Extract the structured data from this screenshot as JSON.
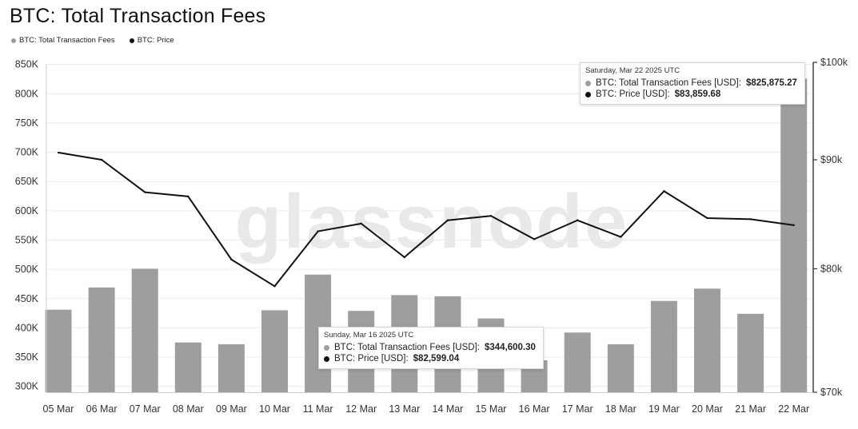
{
  "title": "BTC: Total Transaction Fees",
  "legend": [
    {
      "label": "BTC: Total Transaction Fees",
      "color": "#9e9e9e"
    },
    {
      "label": "BTC: Price",
      "color": "#111111"
    }
  ],
  "watermark": "glassnode",
  "tooltips": [
    {
      "date": "Saturday, Mar 22 2025 UTC",
      "fees_label": "BTC: Total Transaction Fees [USD]:",
      "fees_value": "$825,875.27",
      "price_label": "BTC: Price [USD]:",
      "price_value": "$83,859.68"
    },
    {
      "date": "Sunday, Mar 16 2025 UTC",
      "fees_label": "BTC: Total Transaction Fees [USD]:",
      "fees_value": "$344,600.30",
      "price_label": "BTC: Price [USD]:",
      "price_value": "$82,599.04"
    }
  ],
  "chart_data": {
    "type": "bar",
    "title": "BTC: Total Transaction Fees",
    "categories": [
      "05 Mar",
      "06 Mar",
      "07 Mar",
      "08 Mar",
      "09 Mar",
      "10 Mar",
      "11 Mar",
      "12 Mar",
      "13 Mar",
      "14 Mar",
      "15 Mar",
      "16 Mar",
      "17 Mar",
      "18 Mar",
      "19 Mar",
      "20 Mar",
      "21 Mar",
      "22 Mar"
    ],
    "series": [
      {
        "name": "BTC: Total Transaction Fees",
        "type": "bar",
        "axis": "left",
        "color": "#9e9e9e",
        "values": [
          431000,
          469000,
          501000,
          375000,
          372000,
          430000,
          491000,
          429000,
          456000,
          454000,
          416000,
          344600.3,
          392000,
          372000,
          446000,
          467000,
          424000,
          825875.27
        ]
      },
      {
        "name": "BTC: Price",
        "type": "line",
        "axis": "right",
        "color": "#111111",
        "values": [
          90700,
          90000,
          86900,
          86500,
          80800,
          78500,
          83300,
          84000,
          81000,
          84300,
          84700,
          82599.04,
          84300,
          82800,
          87000,
          84500,
          84400,
          83859.68
        ]
      }
    ],
    "y_left": {
      "ticks": [
        "300K",
        "350K",
        "400K",
        "450K",
        "500K",
        "550K",
        "600K",
        "650K",
        "700K",
        "750K",
        "800K",
        "850K"
      ],
      "ylim": [
        290000,
        870000
      ]
    },
    "y_right": {
      "ticks": [
        "$70k",
        "$80k",
        "$90k",
        "$100k"
      ],
      "ylim": [
        70000,
        100000
      ],
      "scale": "log"
    },
    "grid": true,
    "legend_position": "top-left"
  }
}
